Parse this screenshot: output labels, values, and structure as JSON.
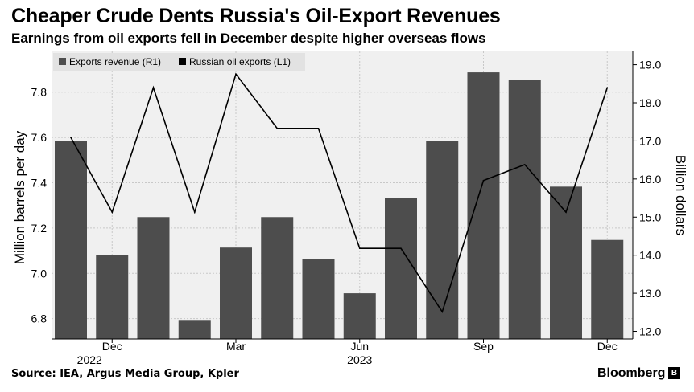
{
  "header": {
    "title": "Cheaper Crude Dents Russia's Oil-Export Revenues",
    "subtitle": "Earnings from oil exports fell in December despite higher overseas flows"
  },
  "footer": {
    "source": "Source: IEA, Argus Media Group, Kpler",
    "brand": "Bloomberg",
    "brand_mark": "B"
  },
  "chart_data": {
    "type": "bar+line",
    "categories": [
      "Nov 2022",
      "Dec 2022",
      "Jan 2023",
      "Feb 2023",
      "Mar 2023",
      "Apr 2023",
      "May 2023",
      "Jun 2023",
      "Jul 2023",
      "Aug 2023",
      "Sep 2023",
      "Oct 2023",
      "Nov 2023",
      "Dec 2023"
    ],
    "series": [
      {
        "name": "Exports revenue (R1)",
        "type": "bar",
        "axis": "right",
        "color": "#4d4d4d",
        "values": [
          17.0,
          14.0,
          15.0,
          12.3,
          14.2,
          15.0,
          13.9,
          13.0,
          15.5,
          17.0,
          18.8,
          18.6,
          15.8,
          14.4
        ]
      },
      {
        "name": "Russian oil exports (L1)",
        "type": "line",
        "axis": "left",
        "color": "#000000",
        "values": [
          7.6,
          7.27,
          7.82,
          7.27,
          7.88,
          7.64,
          7.64,
          7.11,
          7.11,
          6.83,
          7.41,
          7.48,
          7.27,
          7.82
        ]
      }
    ],
    "x_tick_labels": [
      {
        "index": 1,
        "label": "Dec",
        "year": "2022"
      },
      {
        "index": 4,
        "label": "Mar",
        "year": ""
      },
      {
        "index": 7,
        "label": "Jun",
        "year": "2023"
      },
      {
        "index": 10,
        "label": "Sep",
        "year": ""
      },
      {
        "index": 13,
        "label": "Dec",
        "year": ""
      }
    ],
    "left_axis": {
      "label": "Million barrels per day",
      "range": [
        6.71,
        7.98
      ],
      "ticks": [
        6.8,
        7.0,
        7.2,
        7.4,
        7.6,
        7.8
      ],
      "tick_labels": [
        "6.8",
        "7.0",
        "7.2",
        "7.4",
        "7.6",
        "7.8"
      ]
    },
    "right_axis": {
      "label": "Billion dollars",
      "range": [
        11.8,
        19.35
      ],
      "ticks": [
        12,
        13,
        14,
        15,
        16,
        17,
        18,
        19
      ],
      "tick_labels": [
        "12.0",
        "13.0",
        "14.0",
        "15.0",
        "16.0",
        "17.0",
        "18.0",
        "19.0"
      ]
    },
    "grid": true,
    "legend": "top-left",
    "plot_background": "#f0f0f0"
  }
}
